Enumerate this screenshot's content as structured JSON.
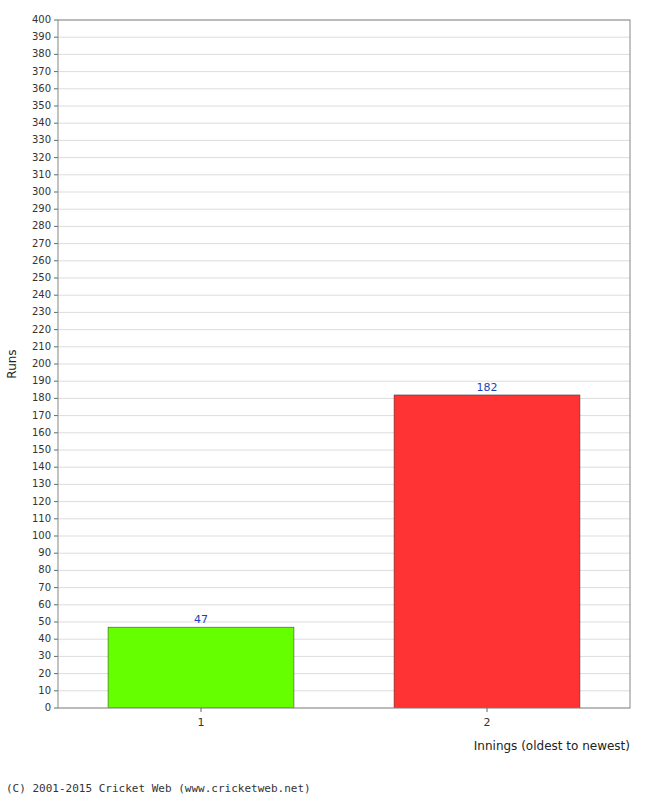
{
  "chart_data": {
    "type": "bar",
    "categories": [
      "1",
      "2"
    ],
    "values": [
      47,
      182
    ],
    "colors": [
      "#66ff00",
      "#ff3333"
    ],
    "xlabel": "Innings (oldest to newest)",
    "ylabel": "Runs",
    "ylim": [
      0,
      400
    ],
    "yticks": [
      0,
      10,
      20,
      30,
      40,
      50,
      60,
      70,
      80,
      90,
      100,
      110,
      120,
      130,
      140,
      150,
      160,
      170,
      180,
      190,
      200,
      210,
      220,
      230,
      240,
      250,
      260,
      270,
      280,
      290,
      300,
      310,
      320,
      330,
      340,
      350,
      360,
      370,
      380,
      390,
      400
    ],
    "grid": true,
    "data_labels": true,
    "annotations": [
      "(C) 2001-2015 Cricket Web (www.cricketweb.net)"
    ]
  }
}
